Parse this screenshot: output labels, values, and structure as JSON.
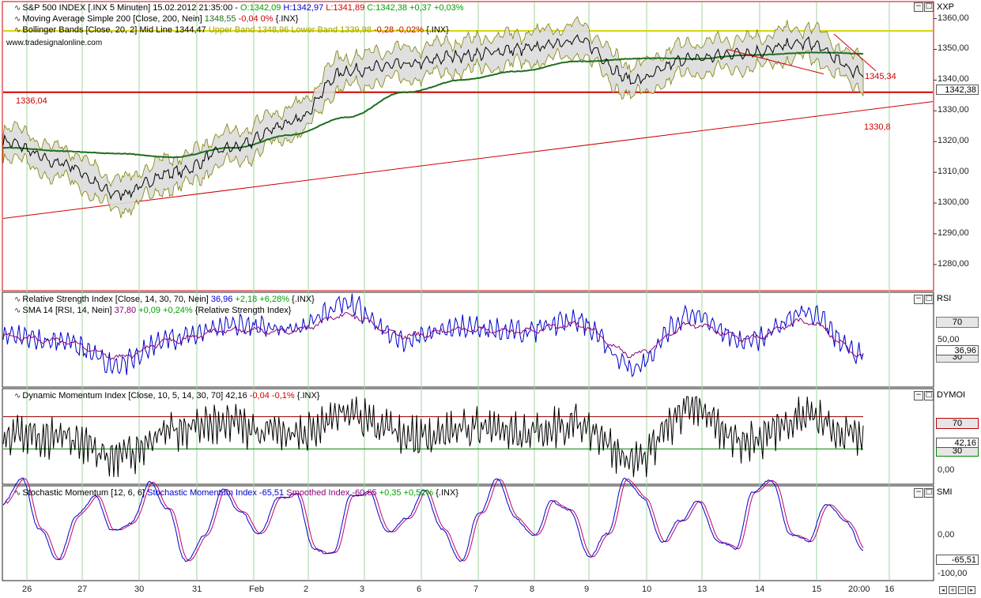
{
  "panels": {
    "price": {
      "legend1": {
        "text": "S&P 500 INDEX [.INX  5 Minuten] 15.02.2012 21:35:00 - ",
        "open": "O:1342,09",
        "high": "H:1342,97",
        "low": "L:1341,89",
        "close_change": "C:1342,38 +0,37 +0,03%"
      },
      "legend2": {
        "text": "Moving Average Simple 200 [Close, 200, Nein]",
        "value": "1348,55",
        "change": "-0,04 0%",
        "src": "{.INX}"
      },
      "legend3": {
        "text": "Bollinger Bands [Close, 20, 2] Mid Line 1344,47",
        "upper": "Upper Band 1348,96",
        "lower": "Lower Band 1339,98",
        "change": "-0,28 -0,02%",
        "src": "{.INX}"
      },
      "watermark": "www.tradesignalonline.com",
      "name": "XXP",
      "ticks": [
        "1360,00",
        "1350,00",
        "1340,00",
        "1330,00",
        "1320,00",
        "1310,00",
        "1300,00",
        "1290,00",
        "1280,00"
      ],
      "current_price": "1342,38",
      "annotations": {
        "support": "1336,04",
        "trend_end": "1330,8",
        "channel_top": "1345,34"
      }
    },
    "rsi": {
      "legend1": {
        "text": "Relative Strength Index [Close, 14, 30, 70, Nein]",
        "value": "36,96",
        "change": "+2,18 +6,28%",
        "src": "{.INX}"
      },
      "legend2": {
        "text": "SMA 14 [RSI, 14, Nein]",
        "value": "37,80",
        "change": "+0,09 +0,24%",
        "src": "{Relative Strength Index}"
      },
      "name": "RSI",
      "ticks": [
        "70",
        "50,00",
        "30"
      ],
      "current": "36,96"
    },
    "dymoi": {
      "legend1": {
        "text": "Dynamic Momentum Index [Close, 10, 5, 14, 30, 70]",
        "value": "42,16",
        "change": "-0,04 -0,1%",
        "src": "{.INX}"
      },
      "name": "DYMOI",
      "ticks": [
        "70",
        "30",
        "0,00"
      ],
      "current": "42,16"
    },
    "smi": {
      "legend1": {
        "text": "Stochastic Momentum [12, 6, 6]",
        "series1": "Stochastic Momentum Index -65,51",
        "series2": "Smoothed Index -60,65",
        "change": "+0,35 +0,52%",
        "src": "{.INX}"
      },
      "name": "SMI",
      "ticks": [
        "0,00",
        "-100,00"
      ],
      "current": "-65,51"
    }
  },
  "x_labels": [
    "26",
    "27",
    "30",
    "31",
    "Feb",
    "2",
    "3",
    "6",
    "7",
    "8",
    "9",
    "10",
    "13",
    "14",
    "15",
    "20:00",
    "16"
  ],
  "colors": {
    "price_line": "#000000",
    "sma200": "#1f6e1f",
    "bollinger": "#808000",
    "support": "#d00000",
    "trend": "#d00000",
    "rsi": "#0000cc",
    "rsi_sma": "#8a007a",
    "upper_level": "#d4d400"
  },
  "chart_data": [
    {
      "type": "line",
      "title": "S&P 500 INDEX [.INX  5 Minuten]",
      "categories": [
        "26",
        "27",
        "30",
        "31",
        "Feb",
        "2",
        "3",
        "6",
        "7",
        "8",
        "9",
        "10",
        "13",
        "14",
        "15",
        "16"
      ],
      "series": [
        {
          "name": "S&P 500 INDEX",
          "values": [
            1320,
            1313,
            1303,
            1310,
            1318,
            1326,
            1343,
            1345,
            1348,
            1350,
            1353,
            1340,
            1347,
            1349,
            1352,
            1342.38
          ]
        },
        {
          "name": "Moving Average Simple 200",
          "values": [
            1318,
            1317,
            1316,
            1315,
            1318,
            1322,
            1328,
            1336,
            1340,
            1343,
            1346,
            1347,
            1347,
            1348,
            1349,
            1348.55
          ]
        }
      ],
      "ylim": [
        1272,
        1364
      ],
      "levels": [
        1336.04,
        1356
      ],
      "trendline": {
        "from": 1295,
        "to": 1330.8
      }
    },
    {
      "type": "line",
      "title": "Relative Strength Index [Close, 14, 30, 70, Nein]",
      "series": [
        {
          "name": "Relative Strength Index",
          "values": [
            55,
            48,
            30,
            52,
            62,
            58,
            78,
            50,
            60,
            57,
            65,
            28,
            70,
            48,
            72,
            36.96
          ]
        },
        {
          "name": "SMA 14",
          "values": [
            53,
            49,
            36,
            50,
            58,
            57,
            70,
            53,
            58,
            57,
            62,
            38,
            62,
            51,
            65,
            37.8
          ]
        }
      ],
      "ylim": [
        15,
        85
      ]
    },
    {
      "type": "line",
      "title": "Dynamic Momentum Index [Close, 10, 5, 14, 30, 70]",
      "series": [
        {
          "name": "Dynamic Momentum Index",
          "values": [
            50,
            45,
            20,
            55,
            60,
            45,
            75,
            45,
            55,
            50,
            60,
            15,
            80,
            40,
            70,
            42.16
          ]
        }
      ],
      "ylim": [
        -10,
        100
      ]
    },
    {
      "type": "line",
      "title": "Stochastic Momentum [12, 6, 6]",
      "series": [
        {
          "name": "Stochastic Momentum Index",
          "values": [
            20,
            -40,
            -85,
            10,
            40,
            -60,
            50,
            -30,
            40,
            -20,
            60,
            -90,
            40,
            -70,
            50,
            -65.51
          ]
        },
        {
          "name": "Smoothed Index",
          "values": [
            15,
            -35,
            -80,
            5,
            35,
            -55,
            45,
            -25,
            35,
            -15,
            55,
            -85,
            35,
            -65,
            45,
            -60.65
          ]
        }
      ],
      "ylim": [
        -115,
        40
      ]
    }
  ]
}
